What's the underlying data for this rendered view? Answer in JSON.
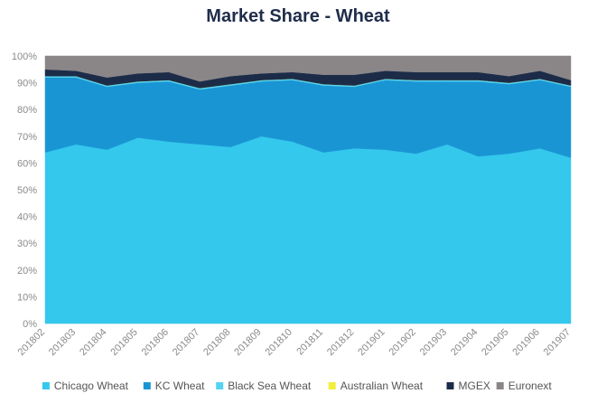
{
  "chart_data": {
    "type": "area",
    "stacked": true,
    "normalized": true,
    "title": "Market Share - Wheat",
    "xlabel": "",
    "ylabel": "",
    "ylim": [
      0,
      100
    ],
    "y_ticks": [
      "0%",
      "10%",
      "20%",
      "30%",
      "40%",
      "50%",
      "60%",
      "70%",
      "80%",
      "90%",
      "100%"
    ],
    "x": [
      "201802",
      "201803",
      "201804",
      "201805",
      "201806",
      "201807",
      "201808",
      "201809",
      "201810",
      "201811",
      "201812",
      "201901",
      "201902",
      "201903",
      "201904",
      "201905",
      "201906",
      "201907"
    ],
    "legend_position": "bottom",
    "grid": true,
    "series": [
      {
        "name": "Chicago Wheat",
        "color": "#33c8ec",
        "values": [
          64,
          67,
          65,
          69.5,
          68,
          67,
          66,
          70,
          68,
          64,
          65.5,
          65,
          63.5,
          67,
          62.5,
          63.5,
          65.5,
          62
        ]
      },
      {
        "name": "KC Wheat",
        "color": "#1a95d4",
        "values": [
          28,
          25,
          23.5,
          20.5,
          22.5,
          20.5,
          23,
          20.5,
          23,
          25,
          23,
          26,
          27,
          23.5,
          28,
          26,
          25.5,
          26.5
        ]
      },
      {
        "name": "Black Sea Wheat",
        "color": "#55d3f1",
        "values": [
          0.5,
          0.5,
          0.5,
          0.5,
          0.5,
          0.5,
          0.5,
          0.5,
          0.5,
          0.5,
          0.5,
          0.5,
          0.5,
          0.5,
          0.5,
          0.5,
          0.5,
          0.5
        ]
      },
      {
        "name": "Australian Wheat",
        "color": "#f2ee3c",
        "values": [
          0,
          0,
          0,
          0,
          0,
          0,
          0,
          0,
          0,
          0,
          0,
          0,
          0,
          0,
          0,
          0,
          0,
          0
        ]
      },
      {
        "name": "MGEX",
        "color": "#1c2c48",
        "values": [
          2.5,
          2,
          3,
          3,
          3,
          2.5,
          3,
          2.5,
          2.5,
          3.5,
          4,
          3,
          3,
          3,
          3,
          2.5,
          3,
          2
        ]
      },
      {
        "name": "Euronext",
        "color": "#8a8688",
        "values": [
          5,
          5.5,
          8,
          6.5,
          6,
          9.5,
          7.5,
          6.5,
          6,
          7,
          7,
          5.5,
          6,
          6,
          6,
          7.5,
          5.5,
          9
        ]
      }
    ]
  }
}
